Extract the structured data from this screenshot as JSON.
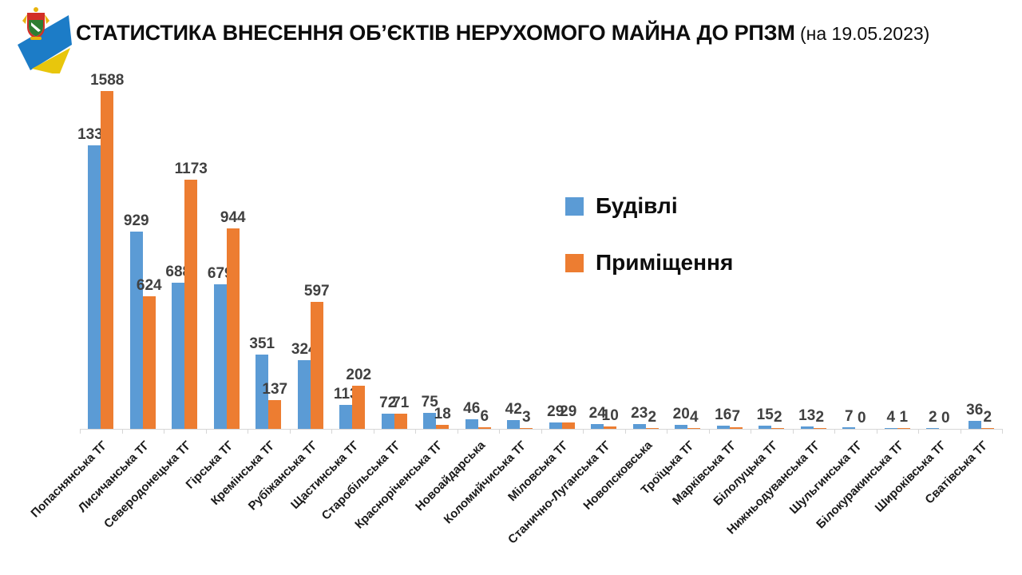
{
  "header": {
    "title": "СТАТИСТИКА ВНЕСЕННЯ ОБ’ЄКТІВ НЕРУХОМОГО МАЙНА ДО РПЗМ",
    "title_suffix": " (на 19.05.2023)"
  },
  "logo": {
    "description": "emblem-with-blue-yellow-flag-swoosh",
    "flag_blue": "#1c7cc7",
    "flag_yellow": "#e8c60c",
    "arms_red": "#d22f27",
    "arms_green": "#2e7d32",
    "arms_gold": "#e8b30c"
  },
  "legend": {
    "position": "right-center",
    "items": [
      {
        "label": "Будівлі",
        "color": "#5B9BD5"
      },
      {
        "label": "Приміщення",
        "color": "#ED7D31"
      }
    ]
  },
  "chart_data": {
    "type": "bar",
    "title": "СТАТИСТИКА ВНЕСЕННЯ ОБ’ЄКТІВ НЕРУХОМОГО МАЙНА ДО РПЗМ (на 19.05.2023)",
    "xlabel": "",
    "ylabel": "",
    "ylim": [
      0,
      1600
    ],
    "grid": false,
    "data_labels": true,
    "label_color": "#404040",
    "axis_color": "#d6d6d6",
    "legend_position": "right-center",
    "categories": [
      "Попаснянська ТГ",
      "Лисичанська ТГ",
      "Северодонецька ТГ",
      "Гірська ТГ",
      "Кремінська ТГ",
      "Рубіжанська ТГ",
      "Щастинська ТГ",
      "Старобільська ТГ",
      "Красноріченська ТГ",
      "Новоайдарська",
      "Коломийчиська ТГ",
      "Міловська ТГ",
      "Станично-Луганська ТГ",
      "Новопсковська",
      "Троїцька ТГ",
      "Марківська ТГ",
      "Білолуцька ТГ",
      "Нижньодуванська ТГ",
      "Шульгинська ТГ",
      "Білокуракинська ТГ",
      "Широківська ТГ",
      "Сватівська ТГ"
    ],
    "series": [
      {
        "name": "Будівлі",
        "color": "#5B9BD5",
        "values": [
          1334,
          929,
          688,
          679,
          351,
          324,
          113,
          72,
          75,
          46,
          42,
          29,
          24,
          23,
          20,
          16,
          15,
          13,
          7,
          4,
          2,
          36
        ]
      },
      {
        "name": "Приміщення",
        "color": "#ED7D31",
        "values": [
          1588,
          624,
          1173,
          944,
          137,
          597,
          202,
          71,
          18,
          6,
          3,
          29,
          10,
          2,
          4,
          7,
          2,
          2,
          0,
          1,
          0,
          2
        ]
      }
    ]
  }
}
